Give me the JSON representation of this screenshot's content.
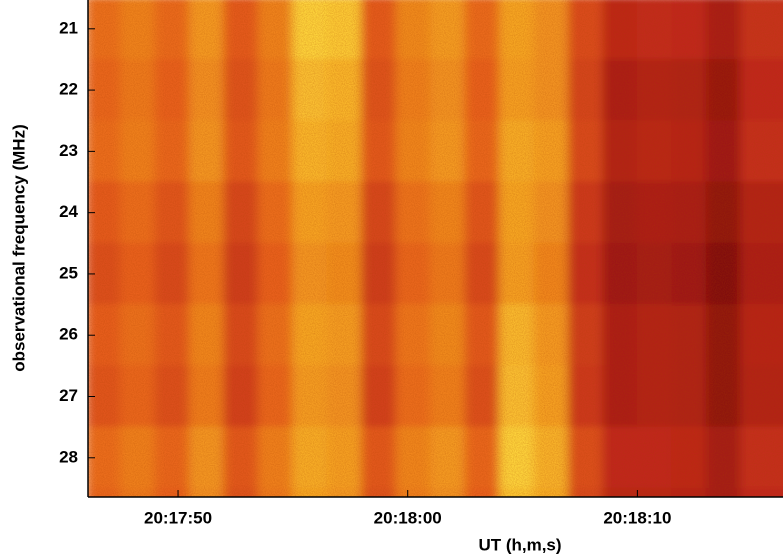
{
  "chart_data": {
    "type": "heatmap",
    "xlabel": "UT (h,m,s)",
    "ylabel": "observational frequency (MHz)",
    "xlim": [
      73066.08,
      73096.34
    ],
    "ylim": [
      20.53,
      28.64
    ],
    "y_inverted": true,
    "xticks": [
      {
        "value": 73070,
        "label": "20:17:50"
      },
      {
        "value": 73080,
        "label": "20:18:00"
      },
      {
        "value": 73090,
        "label": "20:18:10"
      }
    ],
    "yticks": [
      21,
      22,
      23,
      24,
      25,
      26,
      27,
      28
    ],
    "x_edges": [
      73066,
      73067.5,
      73069,
      73070.5,
      73072,
      73073.5,
      73075,
      73076.5,
      73078,
      73079.5,
      73081,
      73082.5,
      73084,
      73085.5,
      73087,
      73088.5,
      73090,
      73091.5,
      73093,
      73094.5,
      73096,
      73097.5
    ],
    "y_edges": [
      20.5,
      21.5,
      22.5,
      23.5,
      24.5,
      25.5,
      26.5,
      27.5,
      28.5,
      29.5
    ],
    "clim": [
      10,
      90
    ],
    "colormap": [
      "#7a0a0a",
      "#c0281a",
      "#e8601e",
      "#f5a020",
      "#ffe040"
    ],
    "z": [
      [
        55,
        61,
        53,
        68,
        48,
        61,
        86,
        83,
        48,
        63,
        69,
        53,
        72,
        66,
        43,
        29,
        31,
        30,
        23,
        33,
        33
      ],
      [
        52,
        58,
        50,
        65,
        45,
        58,
        80,
        77,
        45,
        60,
        66,
        50,
        70,
        66,
        40,
        24,
        26,
        25,
        18,
        30,
        30
      ],
      [
        54,
        60,
        52,
        67,
        47,
        60,
        77,
        74,
        47,
        62,
        68,
        52,
        74,
        70,
        42,
        26,
        28,
        27,
        20,
        32,
        32
      ],
      [
        48,
        54,
        46,
        61,
        41,
        54,
        71,
        68,
        41,
        56,
        62,
        46,
        72,
        66,
        36,
        22,
        24,
        23,
        16,
        26,
        26
      ],
      [
        44,
        50,
        42,
        57,
        37,
        50,
        67,
        64,
        37,
        52,
        58,
        42,
        70,
        62,
        32,
        20,
        22,
        20,
        12,
        24,
        24
      ],
      [
        49,
        55,
        47,
        62,
        42,
        55,
        72,
        69,
        42,
        57,
        63,
        47,
        78,
        68,
        37,
        24,
        26,
        25,
        16,
        27,
        27
      ],
      [
        46,
        52,
        44,
        59,
        39,
        52,
        69,
        66,
        39,
        54,
        60,
        44,
        80,
        70,
        36,
        24,
        26,
        25,
        16,
        26,
        26
      ],
      [
        54,
        60,
        52,
        67,
        47,
        60,
        74,
        70,
        47,
        62,
        68,
        52,
        86,
        76,
        44,
        30,
        30,
        29,
        22,
        32,
        32
      ],
      [
        52,
        58,
        50,
        65,
        45,
        58,
        72,
        68,
        45,
        60,
        66,
        50,
        82,
        74,
        42,
        28,
        28,
        27,
        22,
        30,
        30
      ]
    ]
  }
}
